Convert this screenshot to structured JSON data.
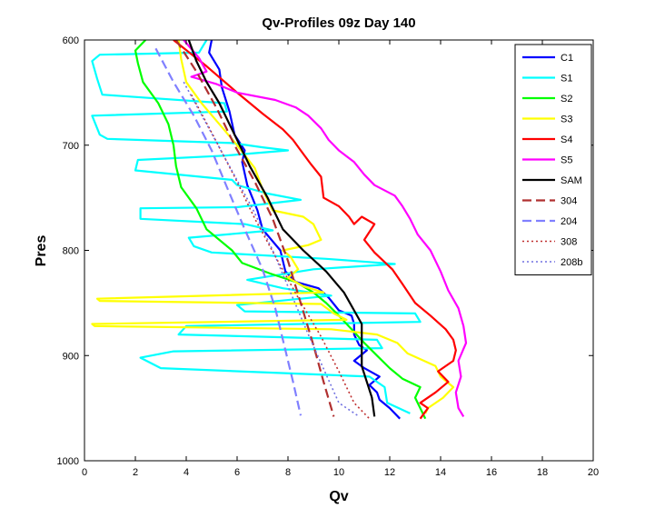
{
  "chart_data": {
    "type": "line",
    "title": "Qv-Profiles 09z Day 140",
    "xlabel": "Qv",
    "ylabel": "Pres",
    "xlim": [
      0,
      20
    ],
    "ylim": [
      600,
      1000
    ],
    "y_reversed": true,
    "x_ticks": [
      0,
      2,
      4,
      6,
      8,
      10,
      12,
      14,
      16,
      18,
      20
    ],
    "y_ticks": [
      600,
      700,
      800,
      900,
      1000
    ],
    "grid": false,
    "legend_position": "top-right",
    "series": [
      {
        "name": "C1",
        "color": "#0000ff",
        "dash": "solid",
        "width": 2.2,
        "points": [
          [
            5.0,
            600
          ],
          [
            4.9,
            612
          ],
          [
            5.3,
            628
          ],
          [
            5.4,
            645
          ],
          [
            5.7,
            668
          ],
          [
            5.9,
            690
          ],
          [
            6.3,
            705
          ],
          [
            6.2,
            716
          ],
          [
            6.4,
            738
          ],
          [
            6.8,
            762
          ],
          [
            7.0,
            780
          ],
          [
            7.7,
            800
          ],
          [
            7.9,
            820
          ],
          [
            8.3,
            830
          ],
          [
            9.2,
            836
          ],
          [
            9.6,
            845
          ],
          [
            10.0,
            857
          ],
          [
            10.5,
            862
          ],
          [
            10.6,
            870
          ],
          [
            10.6,
            880
          ],
          [
            10.8,
            890
          ],
          [
            11.1,
            895
          ],
          [
            10.6,
            905
          ],
          [
            11.0,
            912
          ],
          [
            11.6,
            920
          ],
          [
            11.2,
            928
          ],
          [
            11.5,
            935
          ],
          [
            11.6,
            942
          ],
          [
            12.0,
            950
          ],
          [
            12.4,
            960
          ]
        ]
      },
      {
        "name": "S1",
        "color": "#00ffff",
        "dash": "solid",
        "width": 2.2,
        "points": [
          [
            4.8,
            600
          ],
          [
            4.5,
            612
          ],
          [
            0.6,
            614
          ],
          [
            0.3,
            620
          ],
          [
            0.5,
            637
          ],
          [
            0.7,
            652
          ],
          [
            5.5,
            660
          ],
          [
            5.6,
            668
          ],
          [
            0.3,
            672
          ],
          [
            0.6,
            690
          ],
          [
            0.9,
            694
          ],
          [
            5.8,
            698
          ],
          [
            7.0,
            702
          ],
          [
            8.0,
            705
          ],
          [
            5.5,
            710
          ],
          [
            2.1,
            714
          ],
          [
            2.0,
            724
          ],
          [
            5.8,
            733
          ],
          [
            6.0,
            738
          ],
          [
            7.2,
            746
          ],
          [
            8.5,
            752
          ],
          [
            6.0,
            759
          ],
          [
            2.2,
            760
          ],
          [
            2.2,
            770
          ],
          [
            6.3,
            775
          ],
          [
            7.4,
            781
          ],
          [
            4.1,
            788
          ],
          [
            4.3,
            796
          ],
          [
            5.0,
            802
          ],
          [
            9.5,
            808
          ],
          [
            12.2,
            813
          ],
          [
            9.0,
            818
          ],
          [
            6.4,
            828
          ],
          [
            7.8,
            836
          ],
          [
            9.7,
            843
          ],
          [
            6.0,
            852
          ],
          [
            6.3,
            858
          ],
          [
            13.0,
            860
          ],
          [
            13.2,
            868
          ],
          [
            4.0,
            872
          ],
          [
            3.7,
            880
          ],
          [
            11.5,
            885
          ],
          [
            11.7,
            893
          ],
          [
            3.5,
            896
          ],
          [
            2.2,
            902
          ],
          [
            3.0,
            912
          ],
          [
            11.2,
            920
          ],
          [
            11.8,
            930
          ],
          [
            11.9,
            945
          ],
          [
            12.8,
            955
          ]
        ]
      },
      {
        "name": "S2",
        "color": "#00ff00",
        "dash": "solid",
        "width": 2.2,
        "points": [
          [
            2.4,
            600
          ],
          [
            2.0,
            610
          ],
          [
            2.1,
            622
          ],
          [
            2.3,
            640
          ],
          [
            2.9,
            660
          ],
          [
            3.3,
            680
          ],
          [
            3.5,
            700
          ],
          [
            3.6,
            720
          ],
          [
            3.8,
            740
          ],
          [
            4.4,
            760
          ],
          [
            4.8,
            780
          ],
          [
            5.8,
            800
          ],
          [
            6.2,
            812
          ],
          [
            7.3,
            822
          ],
          [
            8.3,
            830
          ],
          [
            9.0,
            840
          ],
          [
            9.5,
            850
          ],
          [
            10.0,
            862
          ],
          [
            10.5,
            875
          ],
          [
            11.0,
            888
          ],
          [
            11.5,
            900
          ],
          [
            12.0,
            912
          ],
          [
            12.5,
            922
          ],
          [
            13.2,
            930
          ],
          [
            13.0,
            940
          ],
          [
            13.2,
            950
          ],
          [
            13.4,
            960
          ]
        ]
      },
      {
        "name": "S3",
        "color": "#ffff00",
        "dash": "solid",
        "width": 2.2,
        "points": [
          [
            3.7,
            600
          ],
          [
            3.8,
            618
          ],
          [
            4.0,
            640
          ],
          [
            4.6,
            660
          ],
          [
            5.3,
            680
          ],
          [
            6.0,
            700
          ],
          [
            6.7,
            722
          ],
          [
            7.0,
            742
          ],
          [
            7.4,
            762
          ],
          [
            8.6,
            768
          ],
          [
            9.0,
            775
          ],
          [
            9.3,
            790
          ],
          [
            8.8,
            795
          ],
          [
            7.8,
            800
          ],
          [
            8.1,
            806
          ],
          [
            8.4,
            818
          ],
          [
            8.0,
            826
          ],
          [
            8.6,
            834
          ],
          [
            9.4,
            840
          ],
          [
            0.5,
            846
          ],
          [
            0.6,
            848
          ],
          [
            9.3,
            851
          ],
          [
            9.8,
            860
          ],
          [
            10.3,
            866
          ],
          [
            0.3,
            870
          ],
          [
            0.4,
            872
          ],
          [
            9.7,
            875
          ],
          [
            11.5,
            880
          ],
          [
            12.3,
            888
          ],
          [
            12.7,
            898
          ],
          [
            13.8,
            910
          ],
          [
            14.0,
            920
          ],
          [
            14.5,
            930
          ],
          [
            14.1,
            940
          ],
          [
            13.5,
            950
          ],
          [
            13.4,
            955
          ]
        ]
      },
      {
        "name": "S4",
        "color": "#ff0000",
        "dash": "solid",
        "width": 2.2,
        "points": [
          [
            3.5,
            600
          ],
          [
            4.8,
            625
          ],
          [
            6.0,
            650
          ],
          [
            7.0,
            670
          ],
          [
            7.8,
            685
          ],
          [
            8.2,
            695
          ],
          [
            8.5,
            705
          ],
          [
            8.9,
            718
          ],
          [
            9.3,
            730
          ],
          [
            9.4,
            750
          ],
          [
            10.0,
            758
          ],
          [
            10.4,
            768
          ],
          [
            10.6,
            775
          ],
          [
            10.9,
            768
          ],
          [
            11.4,
            775
          ],
          [
            11.0,
            790
          ],
          [
            11.4,
            802
          ],
          [
            12.1,
            818
          ],
          [
            12.5,
            832
          ],
          [
            13.0,
            850
          ],
          [
            13.6,
            862
          ],
          [
            14.2,
            875
          ],
          [
            14.5,
            885
          ],
          [
            14.6,
            895
          ],
          [
            14.5,
            905
          ],
          [
            13.9,
            915
          ],
          [
            14.3,
            925
          ],
          [
            13.8,
            935
          ],
          [
            13.2,
            945
          ],
          [
            13.5,
            950
          ],
          [
            13.2,
            960
          ]
        ]
      },
      {
        "name": "S5",
        "color": "#ff00ff",
        "dash": "solid",
        "width": 2.2,
        "points": [
          [
            3.9,
            600
          ],
          [
            4.5,
            617
          ],
          [
            4.8,
            630
          ],
          [
            4.2,
            635
          ],
          [
            5.2,
            642
          ],
          [
            6.0,
            650
          ],
          [
            7.5,
            657
          ],
          [
            8.3,
            664
          ],
          [
            8.8,
            672
          ],
          [
            9.3,
            684
          ],
          [
            9.6,
            695
          ],
          [
            10.0,
            705
          ],
          [
            10.6,
            716
          ],
          [
            11.0,
            728
          ],
          [
            11.4,
            738
          ],
          [
            12.2,
            748
          ],
          [
            12.5,
            758
          ],
          [
            12.8,
            770
          ],
          [
            13.1,
            785
          ],
          [
            13.6,
            800
          ],
          [
            14.0,
            820
          ],
          [
            14.3,
            838
          ],
          [
            14.7,
            855
          ],
          [
            14.9,
            872
          ],
          [
            15.0,
            888
          ],
          [
            14.7,
            905
          ],
          [
            14.8,
            920
          ],
          [
            14.6,
            935
          ],
          [
            14.7,
            950
          ],
          [
            14.9,
            958
          ]
        ]
      },
      {
        "name": "SAM",
        "color": "#000000",
        "dash": "solid",
        "width": 2.2,
        "points": [
          [
            4.1,
            600
          ],
          [
            4.4,
            620
          ],
          [
            4.8,
            640
          ],
          [
            5.3,
            660
          ],
          [
            5.9,
            690
          ],
          [
            6.5,
            720
          ],
          [
            7.2,
            750
          ],
          [
            7.8,
            780
          ],
          [
            8.6,
            800
          ],
          [
            9.5,
            820
          ],
          [
            10.2,
            840
          ],
          [
            10.9,
            870
          ],
          [
            10.9,
            890
          ],
          [
            10.9,
            910
          ],
          [
            11.1,
            925
          ],
          [
            11.3,
            940
          ],
          [
            11.4,
            958
          ]
        ]
      },
      {
        "name": "304",
        "color": "#b03030",
        "dash": "10,5",
        "width": 2.2,
        "points": [
          [
            3.6,
            600
          ],
          [
            4.4,
            630
          ],
          [
            5.2,
            665
          ],
          [
            5.9,
            700
          ],
          [
            6.7,
            735
          ],
          [
            7.4,
            770
          ],
          [
            8.0,
            810
          ],
          [
            8.5,
            850
          ],
          [
            9.0,
            890
          ],
          [
            9.4,
            925
          ],
          [
            9.8,
            958
          ]
        ]
      },
      {
        "name": "204",
        "color": "#8080ff",
        "dash": "10,5",
        "width": 2.2,
        "points": [
          [
            2.8,
            608
          ],
          [
            3.5,
            640
          ],
          [
            4.3,
            672
          ],
          [
            5.0,
            705
          ],
          [
            5.6,
            740
          ],
          [
            6.3,
            780
          ],
          [
            7.0,
            818
          ],
          [
            7.5,
            855
          ],
          [
            7.9,
            895
          ],
          [
            8.2,
            925
          ],
          [
            8.5,
            957
          ]
        ]
      },
      {
        "name": "308",
        "color": "#c03030",
        "dash": "2,3",
        "width": 1.6,
        "points": [
          [
            4.2,
            652
          ],
          [
            5.0,
            688
          ],
          [
            5.9,
            730
          ],
          [
            6.7,
            770
          ],
          [
            7.6,
            810
          ],
          [
            8.4,
            845
          ],
          [
            9.3,
            882
          ],
          [
            10.0,
            915
          ],
          [
            10.6,
            945
          ],
          [
            11.2,
            960
          ]
        ]
      },
      {
        "name": "208b",
        "color": "#7070e0",
        "dash": "2,3",
        "width": 1.6,
        "points": [
          [
            3.9,
            640
          ],
          [
            4.8,
            680
          ],
          [
            5.7,
            720
          ],
          [
            6.6,
            760
          ],
          [
            7.4,
            800
          ],
          [
            8.1,
            840
          ],
          [
            8.8,
            880
          ],
          [
            9.5,
            918
          ],
          [
            10.0,
            945
          ],
          [
            10.8,
            958
          ]
        ]
      }
    ]
  }
}
